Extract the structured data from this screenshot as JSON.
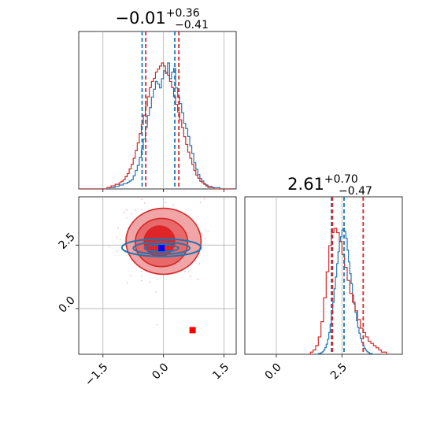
{
  "chart_data": [
    {
      "type": "histogram",
      "panel": "top-left",
      "title": {
        "value": "−0.01",
        "sup": "+0.36",
        "sub": "−0.41"
      },
      "xlim": [
        -2.1,
        1.8
      ],
      "grid": true,
      "series": [
        {
          "color": "#1f77b4",
          "bins_start": -2.1,
          "bin_width": 0.05,
          "values": [
            0,
            0,
            0,
            0,
            0,
            0,
            0,
            0,
            0,
            0,
            0,
            0,
            0,
            0,
            0,
            1,
            1,
            1,
            2,
            2,
            3,
            3,
            4,
            4,
            5,
            6,
            7,
            10,
            14,
            18,
            24,
            30,
            38,
            47,
            56,
            62,
            70,
            76,
            82,
            80,
            77,
            84,
            90,
            88,
            96,
            84,
            89,
            92,
            77,
            70,
            65,
            58,
            50,
            46,
            40,
            33,
            27,
            20,
            15,
            11,
            8,
            6,
            4,
            3,
            2,
            2,
            1,
            1,
            1,
            1,
            0,
            0,
            0,
            0,
            0,
            0,
            0,
            0
          ]
        },
        {
          "color": "#d62728",
          "bins_start": -2.1,
          "bin_width": 0.05,
          "values": [
            0,
            0,
            0,
            0,
            0,
            0,
            0,
            0,
            0,
            0,
            0,
            0,
            0,
            0,
            1,
            1,
            2,
            2,
            3,
            3,
            4,
            5,
            6,
            8,
            10,
            13,
            16,
            20,
            25,
            30,
            36,
            42,
            48,
            54,
            60,
            66,
            70,
            72,
            76,
            78,
            80,
            82,
            80,
            76,
            74,
            70,
            66,
            60,
            55,
            50,
            45,
            40,
            34,
            29,
            24,
            20,
            16,
            12,
            9,
            7,
            5,
            4,
            3,
            2,
            1,
            1,
            1,
            0,
            0,
            0,
            0,
            0,
            0,
            0,
            0,
            0,
            0,
            0
          ]
        }
      ],
      "quantile_lines": [
        {
          "x": -0.53,
          "color": "#1f77b4"
        },
        {
          "x": 0.28,
          "color": "#1f77b4"
        },
        {
          "x": -0.44,
          "color": "#d62728"
        },
        {
          "x": 0.38,
          "color": "#d62728"
        }
      ]
    },
    {
      "type": "contour",
      "panel": "bottom-left",
      "xlim": [
        -2.1,
        1.8
      ],
      "ylim": [
        -1.8,
        4.4
      ],
      "xticks": [
        -1.5,
        0.0,
        1.5
      ],
      "xtick_labels": [
        "−1.5",
        "0.0",
        "1.5"
      ],
      "yticks": [
        0.0,
        2.5
      ],
      "ytick_labels": [
        "0.0",
        "2.5"
      ],
      "grid": true,
      "red_contours": {
        "color": "#d62728",
        "fills": [
          "#f0a6a7",
          "#e7696a",
          "#df2527"
        ],
        "levels": [
          {
            "cx": 0.0,
            "cy": 2.65,
            "rx": 0.93,
            "ry": 1.3
          },
          {
            "cx": -0.05,
            "cy": 2.6,
            "rx": 0.65,
            "ry": 0.95
          },
          {
            "cx": -0.1,
            "cy": 2.65,
            "rx": 0.38,
            "ry": 0.6
          }
        ]
      },
      "blue_contours": {
        "color": "#1f77b4",
        "levels": [
          {
            "cx": -0.05,
            "cy": 2.4,
            "rx": 0.98,
            "ry": 0.35
          },
          {
            "cx": -0.05,
            "cy": 2.38,
            "rx": 0.7,
            "ry": 0.24
          },
          {
            "cx": -0.05,
            "cy": 2.38,
            "rx": 0.42,
            "ry": 0.14
          }
        ]
      },
      "markers": [
        {
          "x": -0.05,
          "y": 2.38,
          "color": "#0000ff"
        },
        {
          "x": 0.72,
          "y": -0.85,
          "color": "#ff0000"
        }
      ]
    },
    {
      "type": "histogram",
      "panel": "bottom-right",
      "title": {
        "value": "2.61",
        "sup": "+0.70",
        "sub": "−0.47"
      },
      "xlim": [
        -1.2,
        4.8
      ],
      "xticks": [
        0.0,
        2.5
      ],
      "xtick_labels": [
        "0.0",
        "2.5"
      ],
      "grid": true,
      "series": [
        {
          "color": "#1f77b4",
          "bins_start": 1.5,
          "bin_width": 0.05,
          "values": [
            0,
            0,
            1,
            1,
            2,
            3,
            5,
            8,
            12,
            18,
            26,
            36,
            48,
            62,
            78,
            92,
            108,
            122,
            134,
            140,
            148,
            150,
            146,
            138,
            124,
            110,
            96,
            84,
            70,
            60,
            50,
            40,
            32,
            25,
            19,
            14,
            10,
            7,
            5,
            3,
            2,
            1,
            1,
            0,
            0
          ]
        },
        {
          "color": "#d62728",
          "bins_start": 1.2,
          "bin_width": 0.1,
          "values": [
            0,
            1,
            2,
            4,
            8,
            15,
            26,
            38,
            50,
            56,
            58,
            56,
            52,
            46,
            40,
            34,
            28,
            24,
            20,
            16,
            12,
            10,
            8,
            6,
            5,
            4,
            3,
            2,
            1,
            1,
            0
          ]
        }
      ],
      "quantile_lines": [
        {
          "x": 2.1,
          "color": "#1f77b4"
        },
        {
          "x": 2.58,
          "color": "#1f77b4"
        },
        {
          "x": 2.14,
          "color": "#d62728"
        },
        {
          "x": 3.31,
          "color": "#d62728"
        }
      ]
    }
  ]
}
